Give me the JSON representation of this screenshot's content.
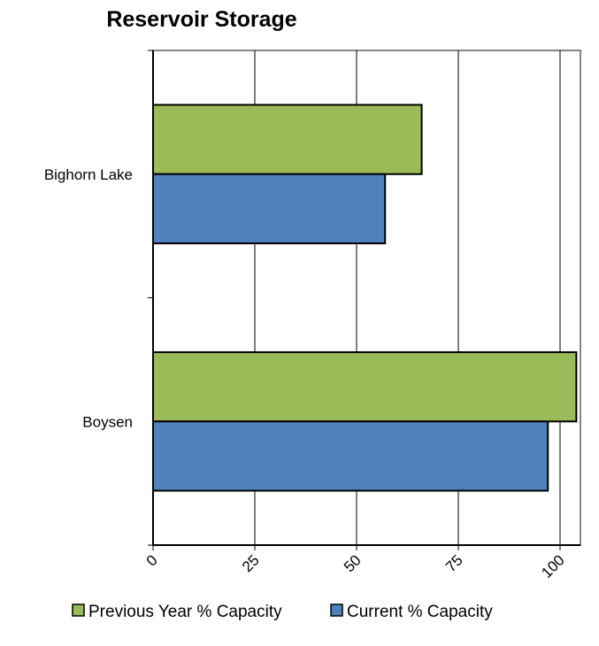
{
  "chart_data": {
    "type": "bar",
    "orientation": "horizontal",
    "title": "Reservoir Storage",
    "categories": [
      "Bighorn Lake",
      "Boysen"
    ],
    "series": [
      {
        "name": "Previous Year % Capacity",
        "values": [
          66,
          104
        ],
        "color": "#9bbb59"
      },
      {
        "name": "Current % Capacity",
        "values": [
          57,
          97
        ],
        "color": "#4f81bd"
      }
    ],
    "xlabel": "",
    "ylabel": "",
    "xlim": [
      0,
      105
    ],
    "xticks": [
      0,
      25,
      50,
      75,
      100
    ],
    "xtick_labels": [
      "0",
      "25",
      "50",
      "75",
      "100"
    ],
    "grid": "vertical",
    "legend_position": "bottom"
  }
}
